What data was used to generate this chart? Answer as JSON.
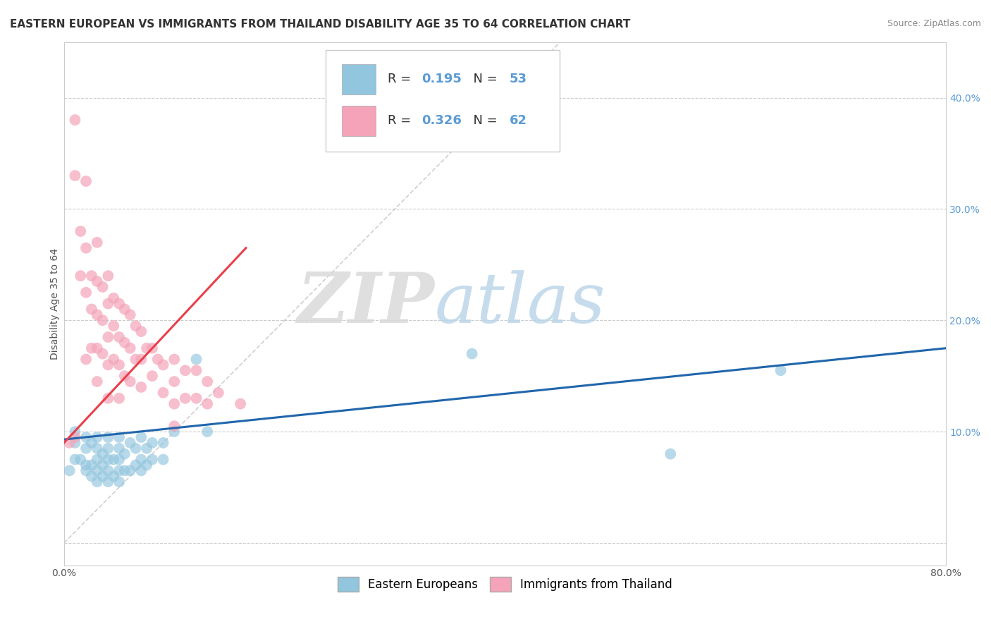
{
  "title": "EASTERN EUROPEAN VS IMMIGRANTS FROM THAILAND DISABILITY AGE 35 TO 64 CORRELATION CHART",
  "source": "Source: ZipAtlas.com",
  "xlabel": "",
  "ylabel": "Disability Age 35 to 64",
  "xlim": [
    0.0,
    0.8
  ],
  "ylim": [
    -0.02,
    0.45
  ],
  "xticks": [
    0.0,
    0.1,
    0.2,
    0.3,
    0.4,
    0.5,
    0.6,
    0.7,
    0.8
  ],
  "xticklabels": [
    "0.0%",
    "",
    "",
    "",
    "",
    "",
    "",
    "",
    "80.0%"
  ],
  "yticks": [
    0.0,
    0.1,
    0.2,
    0.3,
    0.4
  ],
  "yticklabels": [
    "",
    "10.0%",
    "20.0%",
    "30.0%",
    "40.0%"
  ],
  "blue_R": 0.195,
  "blue_N": 53,
  "pink_R": 0.326,
  "pink_N": 62,
  "blue_color": "#92c5de",
  "pink_color": "#f4a3b8",
  "blue_line_color": "#2166ac",
  "pink_line_color": "#e8404a",
  "watermark_zip": "ZIP",
  "watermark_atlas": "atlas",
  "legend_labels": [
    "Eastern Europeans",
    "Immigrants from Thailand"
  ],
  "grid_color": "#cccccc",
  "background_color": "#ffffff",
  "title_fontsize": 11,
  "axis_label_fontsize": 10,
  "tick_fontsize": 10,
  "legend_fontsize": 12,
  "blue_scatter_x": [
    0.005,
    0.01,
    0.01,
    0.01,
    0.015,
    0.02,
    0.02,
    0.02,
    0.02,
    0.025,
    0.025,
    0.025,
    0.03,
    0.03,
    0.03,
    0.03,
    0.03,
    0.035,
    0.035,
    0.035,
    0.04,
    0.04,
    0.04,
    0.04,
    0.04,
    0.045,
    0.045,
    0.05,
    0.05,
    0.05,
    0.05,
    0.05,
    0.055,
    0.055,
    0.06,
    0.06,
    0.065,
    0.065,
    0.07,
    0.07,
    0.07,
    0.075,
    0.075,
    0.08,
    0.08,
    0.09,
    0.09,
    0.1,
    0.12,
    0.13,
    0.37,
    0.55,
    0.65
  ],
  "blue_scatter_y": [
    0.065,
    0.075,
    0.09,
    0.1,
    0.075,
    0.065,
    0.07,
    0.085,
    0.095,
    0.06,
    0.07,
    0.09,
    0.055,
    0.065,
    0.075,
    0.085,
    0.095,
    0.06,
    0.07,
    0.08,
    0.055,
    0.065,
    0.075,
    0.085,
    0.095,
    0.06,
    0.075,
    0.055,
    0.065,
    0.075,
    0.085,
    0.095,
    0.065,
    0.08,
    0.065,
    0.09,
    0.07,
    0.085,
    0.065,
    0.075,
    0.095,
    0.07,
    0.085,
    0.075,
    0.09,
    0.075,
    0.09,
    0.1,
    0.165,
    0.1,
    0.17,
    0.08,
    0.155
  ],
  "pink_scatter_x": [
    0.005,
    0.01,
    0.01,
    0.01,
    0.015,
    0.015,
    0.02,
    0.02,
    0.02,
    0.02,
    0.025,
    0.025,
    0.025,
    0.03,
    0.03,
    0.03,
    0.03,
    0.03,
    0.035,
    0.035,
    0.035,
    0.04,
    0.04,
    0.04,
    0.04,
    0.04,
    0.045,
    0.045,
    0.045,
    0.05,
    0.05,
    0.05,
    0.05,
    0.055,
    0.055,
    0.055,
    0.06,
    0.06,
    0.06,
    0.065,
    0.065,
    0.07,
    0.07,
    0.07,
    0.075,
    0.08,
    0.08,
    0.085,
    0.09,
    0.09,
    0.1,
    0.1,
    0.1,
    0.1,
    0.11,
    0.11,
    0.12,
    0.12,
    0.13,
    0.13,
    0.14,
    0.16
  ],
  "pink_scatter_y": [
    0.09,
    0.38,
    0.33,
    0.095,
    0.28,
    0.24,
    0.325,
    0.265,
    0.225,
    0.165,
    0.24,
    0.21,
    0.175,
    0.27,
    0.235,
    0.205,
    0.175,
    0.145,
    0.23,
    0.2,
    0.17,
    0.24,
    0.215,
    0.185,
    0.16,
    0.13,
    0.22,
    0.195,
    0.165,
    0.215,
    0.185,
    0.16,
    0.13,
    0.21,
    0.18,
    0.15,
    0.205,
    0.175,
    0.145,
    0.195,
    0.165,
    0.19,
    0.165,
    0.14,
    0.175,
    0.175,
    0.15,
    0.165,
    0.16,
    0.135,
    0.165,
    0.145,
    0.125,
    0.105,
    0.155,
    0.13,
    0.155,
    0.13,
    0.145,
    0.125,
    0.135,
    0.125
  ],
  "ref_line_x": [
    0.0,
    0.45
  ],
  "ref_line_y": [
    0.0,
    0.45
  ]
}
